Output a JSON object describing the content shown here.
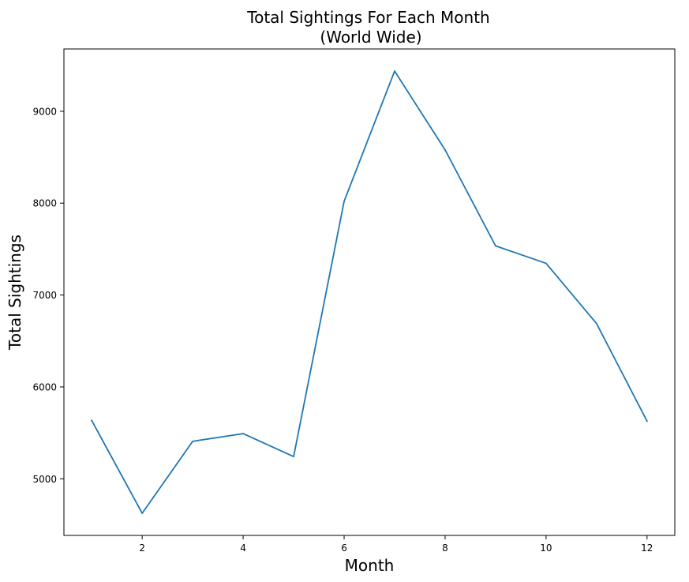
{
  "chart_data": {
    "type": "line",
    "title": "Total Sightings For Each Month",
    "subtitle": "(World Wide)",
    "xlabel": "Month",
    "ylabel": "Total Sightings",
    "x": [
      1,
      2,
      3,
      4,
      5,
      6,
      7,
      8,
      9,
      10,
      11,
      12
    ],
    "series": [
      {
        "values": [
          5635,
          4625,
          5408,
          5492,
          5242,
          8020,
          9437,
          8580,
          7535,
          7345,
          6690,
          5628
        ],
        "color": "#1f77b4"
      }
    ],
    "xlim": [
      0.45,
      12.55
    ],
    "ylim": [
      4384,
      9678
    ],
    "x_ticks": [
      2,
      4,
      6,
      8,
      10,
      12
    ],
    "y_ticks": [
      5000,
      6000,
      7000,
      8000,
      9000
    ],
    "grid": false,
    "legend": "none"
  }
}
